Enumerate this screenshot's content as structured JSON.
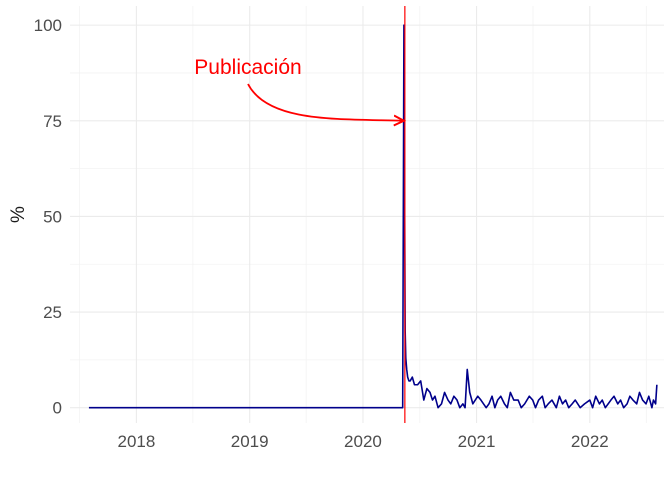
{
  "chart_data": {
    "type": "line",
    "title": "",
    "xlabel": "",
    "ylabel": "%",
    "xlim": [
      "2017-06-01",
      "2022-08-28"
    ],
    "ylim": [
      -4,
      105
    ],
    "x_ticks": [
      "2018",
      "2019",
      "2020",
      "2021",
      "2022"
    ],
    "y_ticks": [
      "0",
      "25",
      "50",
      "75",
      "100"
    ],
    "grid": true,
    "legend": "none",
    "series_color": "#00008b",
    "annotation": {
      "text": "Publicación",
      "color": "#ff0000",
      "vline_date": "2020-05-15",
      "arrow_target_y": 75
    },
    "series": [
      {
        "x": [
          "2017-08-01",
          "2018-01-01",
          "2019-01-01",
          "2020-01-01",
          "2020-04-01",
          "2020-05-01",
          "2020-05-08",
          "2020-05-10",
          "2020-05-12",
          "2020-05-14",
          "2020-05-16",
          "2020-05-18",
          "2020-05-21",
          "2020-05-24",
          "2020-05-28",
          "2020-06-01",
          "2020-06-08",
          "2020-06-15",
          "2020-06-25",
          "2020-07-05",
          "2020-07-15",
          "2020-07-25",
          "2020-08-04",
          "2020-08-12",
          "2020-08-20",
          "2020-08-30",
          "2020-09-10",
          "2020-09-20",
          "2020-10-01",
          "2020-10-10",
          "2020-10-20",
          "2020-10-30",
          "2020-11-08",
          "2020-11-18",
          "2020-11-25",
          "2020-12-02",
          "2020-12-10",
          "2020-12-20",
          "2021-01-05",
          "2021-01-15",
          "2021-02-01",
          "2021-02-10",
          "2021-02-20",
          "2021-03-01",
          "2021-03-10",
          "2021-03-20",
          "2021-04-01",
          "2021-04-10",
          "2021-04-20",
          "2021-05-01",
          "2021-05-15",
          "2021-05-25",
          "2021-06-05",
          "2021-06-20",
          "2021-07-01",
          "2021-07-10",
          "2021-07-20",
          "2021-08-01",
          "2021-08-10",
          "2021-08-20",
          "2021-09-01",
          "2021-09-15",
          "2021-09-25",
          "2021-10-05",
          "2021-10-15",
          "2021-10-25",
          "2021-11-05",
          "2021-11-15",
          "2021-12-01",
          "2021-12-15",
          "2022-01-01",
          "2022-01-10",
          "2022-01-20",
          "2022-02-01",
          "2022-02-10",
          "2022-02-20",
          "2022-03-01",
          "2022-03-10",
          "2022-03-20",
          "2022-04-01",
          "2022-04-10",
          "2022-04-20",
          "2022-05-01",
          "2022-05-10",
          "2022-05-20",
          "2022-06-01",
          "2022-06-10",
          "2022-06-20",
          "2022-07-01",
          "2022-07-10",
          "2022-07-20",
          "2022-07-25",
          "2022-08-01",
          "2022-08-05"
        ],
        "y": [
          0,
          0,
          0,
          0,
          0,
          0,
          0,
          50,
          100,
          60,
          20,
          13,
          10,
          8,
          7,
          7,
          8,
          6,
          6,
          7,
          2,
          5,
          4,
          2,
          3,
          0,
          1,
          4,
          2,
          1,
          3,
          2,
          0,
          1,
          0,
          10,
          4,
          1,
          3,
          2,
          0,
          1,
          3,
          0,
          2,
          3,
          1,
          0,
          4,
          2,
          2,
          0,
          1,
          3,
          2,
          0,
          2,
          3,
          0,
          1,
          2,
          0,
          3,
          1,
          2,
          0,
          1,
          2,
          0,
          1,
          2,
          0,
          3,
          1,
          2,
          0,
          1,
          2,
          3,
          1,
          2,
          0,
          1,
          3,
          2,
          1,
          4,
          2,
          1,
          3,
          0,
          2,
          1,
          6
        ]
      }
    ]
  }
}
